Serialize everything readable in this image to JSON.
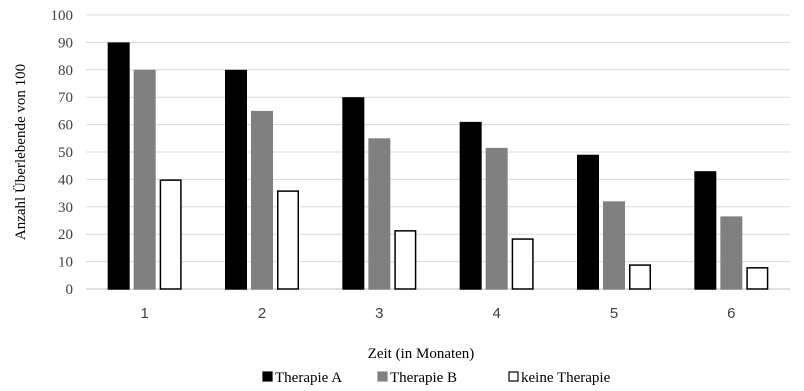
{
  "chart_data": {
    "type": "bar",
    "categories": [
      "1",
      "2",
      "3",
      "4",
      "5",
      "6"
    ],
    "series": [
      {
        "name": "Therapie A",
        "values": [
          90,
          80,
          70,
          61,
          49,
          43
        ],
        "color": "#000000",
        "stroke": "#000000"
      },
      {
        "name": "Therapie B",
        "values": [
          80,
          65,
          55,
          51.5,
          32,
          26.5
        ],
        "color": "#808080",
        "stroke": "#808080"
      },
      {
        "name": "keine Therapie",
        "values": [
          40,
          36,
          21.5,
          18.5,
          9,
          8
        ],
        "color": "#ffffff",
        "stroke": "#000000"
      }
    ],
    "xlabel": "Zeit (in Monaten)",
    "ylabel": "Anzahl Überlebende von 100",
    "ylim": [
      0,
      100
    ],
    "yticks": [
      "0",
      "10",
      "20",
      "30",
      "40",
      "50",
      "60",
      "70",
      "80",
      "90",
      "100"
    ],
    "grid": true,
    "legend_position": "bottom"
  }
}
